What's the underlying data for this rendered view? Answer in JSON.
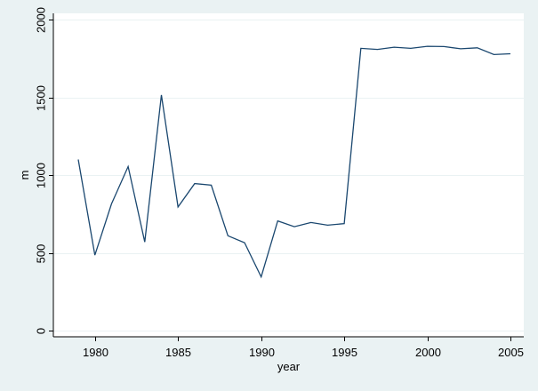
{
  "chart_data": {
    "type": "line",
    "title": "",
    "xlabel": "year",
    "ylabel": "m",
    "xlim": [
      1977.5,
      2005.8
    ],
    "ylim": [
      -40,
      2040
    ],
    "xticks": [
      1980,
      1985,
      1990,
      1995,
      2000,
      2005
    ],
    "xtick_labels": [
      "1980",
      "1985",
      "1990",
      "1995",
      "2000",
      "2005"
    ],
    "yticks": [
      0,
      500,
      1000,
      1500,
      2000
    ],
    "ytick_labels": [
      "0",
      "500",
      "1000",
      "1500",
      "2000"
    ],
    "grid": true,
    "legend": "none",
    "series": [
      {
        "x": [
          1979,
          1980,
          1981,
          1982,
          1983,
          1984,
          1985,
          1986,
          1987,
          1988,
          1989,
          1990,
          1991,
          1992,
          1993,
          1994,
          1995,
          1996,
          1997,
          1998,
          1999,
          2000,
          2001,
          2002,
          2003,
          2004,
          2005
        ],
        "values": [
          1100,
          485,
          815,
          1055,
          570,
          1515,
          795,
          945,
          935,
          610,
          565,
          345,
          705,
          668,
          695,
          678,
          688,
          1815,
          1808,
          1822,
          1815,
          1828,
          1826,
          1812,
          1818,
          1775,
          1780
        ]
      }
    ],
    "colors": {
      "background": "#eaf2f3",
      "plot_background": "#ffffff",
      "line": "#1a476f",
      "grid": "#eaf2f3"
    }
  }
}
